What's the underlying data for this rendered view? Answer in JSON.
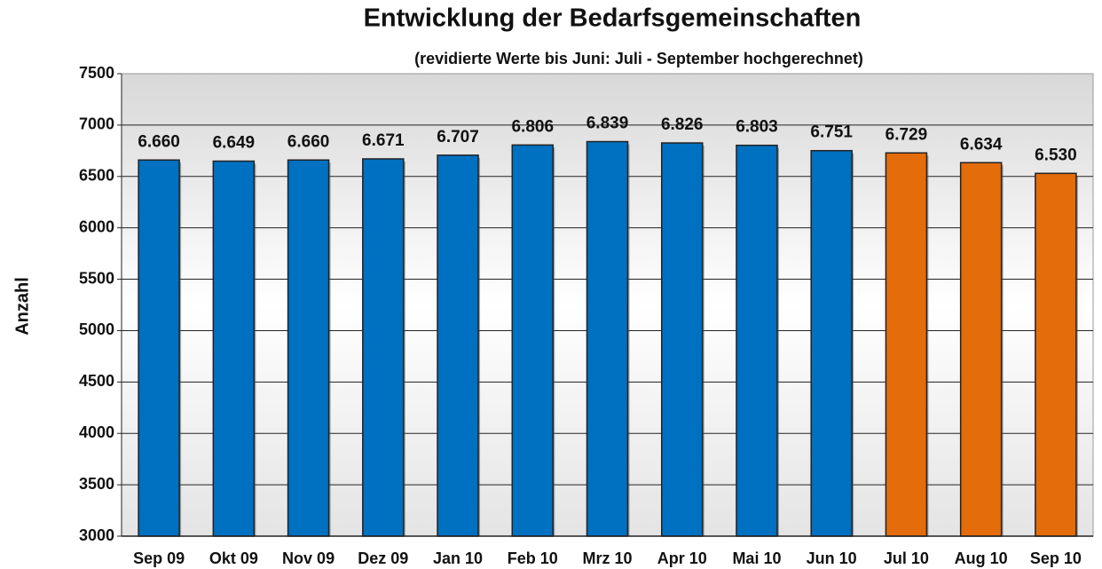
{
  "chart_data": {
    "type": "bar",
    "title": "Entwicklung der Bedarfsgemeinschaften",
    "subtitle": "(revidierte Werte bis  Juni: Juli - September hochgerechnet)",
    "y_label": "Anzahl",
    "categories": [
      "Sep 09",
      "Okt 09",
      "Nov 09",
      "Dez 09",
      "Jan 10",
      "Feb 10",
      "Mrz 10",
      "Apr 10",
      "Mai 10",
      "Jun 10",
      "Jul 10",
      "Aug 10",
      "Sep 10"
    ],
    "values": [
      6660,
      6649,
      6660,
      6671,
      6707,
      6806,
      6839,
      6826,
      6803,
      6751,
      6729,
      6634,
      6530
    ],
    "value_labels": [
      "6.660",
      "6.649",
      "6.660",
      "6.671",
      "6.707",
      "6.806",
      "6.839",
      "6.826",
      "6.803",
      "6.751",
      "6.729",
      "6.634",
      "6.530"
    ],
    "colors": [
      "#0070c0",
      "#0070c0",
      "#0070c0",
      "#0070c0",
      "#0070c0",
      "#0070c0",
      "#0070c0",
      "#0070c0",
      "#0070c0",
      "#0070c0",
      "#e46c0a",
      "#e46c0a",
      "#e46c0a"
    ],
    "ylim": [
      3000,
      7500
    ],
    "yticks": [
      3000,
      3500,
      4000,
      4500,
      5000,
      5500,
      6000,
      6500,
      7000,
      7500
    ],
    "grid": true
  }
}
